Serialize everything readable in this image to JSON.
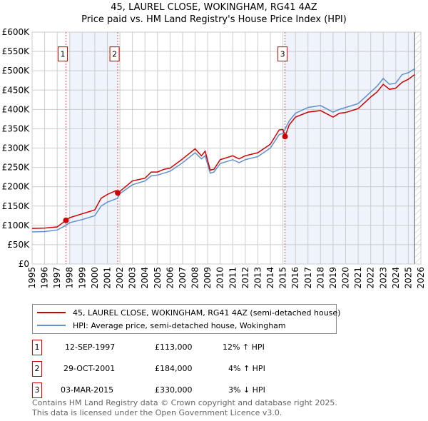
{
  "title": "45, LAUREL CLOSE, WOKINGHAM, RG41 4AZ",
  "subtitle": "Price paid vs. HM Land Registry's House Price Index (HPI)",
  "chart_data": {
    "type": "line",
    "xlim": [
      1995,
      2026
    ],
    "ylim": [
      0,
      600000
    ],
    "yticks": [
      0,
      50000,
      100000,
      150000,
      200000,
      250000,
      300000,
      350000,
      400000,
      450000,
      500000,
      550000,
      600000
    ],
    "ytick_labels": [
      "£0",
      "£50K",
      "£100K",
      "£150K",
      "£200K",
      "£250K",
      "£300K",
      "£350K",
      "£400K",
      "£450K",
      "£500K",
      "£550K",
      "£600K"
    ],
    "xtick_labels": [
      "1995",
      "1996",
      "1997",
      "1998",
      "1999",
      "2000",
      "2001",
      "2002",
      "2003",
      "2004",
      "2005",
      "2006",
      "2007",
      "2008",
      "2009",
      "2010",
      "2011",
      "2012",
      "2013",
      "2014",
      "2015",
      "2016",
      "2017",
      "2018",
      "2019",
      "2020",
      "2021",
      "2022",
      "2023",
      "2024",
      "2025",
      "2026"
    ],
    "grid": true,
    "series": [
      {
        "name": "45, LAUREL CLOSE, WOKINGHAM, RG41 4AZ (semi-detached house)",
        "color": "#cc0000",
        "x": [
          1995,
          1996,
          1997,
          1997.7,
          1998,
          1999,
          2000,
          2000.5,
          2001,
          2001.7,
          2001.83,
          2002,
          2003,
          2004,
          2004.5,
          2005,
          2005.5,
          2006,
          2007,
          2008,
          2008.5,
          2008.8,
          2009.2,
          2009.5,
          2010,
          2011,
          2011.5,
          2012,
          2013,
          2014,
          2014.7,
          2015,
          2015.17,
          2015.5,
          2016,
          2017,
          2018,
          2019,
          2019.5,
          2020,
          2021,
          2022,
          2022.5,
          2023,
          2023.5,
          2024,
          2024.5,
          2025,
          2025.5
        ],
        "y": [
          92000,
          93000,
          96000,
          113000,
          120000,
          130000,
          140000,
          170000,
          180000,
          190000,
          184000,
          188000,
          215000,
          222000,
          238000,
          238000,
          245000,
          248000,
          272000,
          298000,
          280000,
          292000,
          243000,
          245000,
          270000,
          280000,
          272000,
          280000,
          288000,
          310000,
          347000,
          348000,
          330000,
          360000,
          380000,
          393000,
          397000,
          380000,
          390000,
          392000,
          402000,
          432000,
          445000,
          465000,
          452000,
          455000,
          470000,
          478000,
          490000
        ]
      },
      {
        "name": "HPI: Average price, semi-detached house, Wokingham",
        "color": "#6090d0",
        "x": [
          1995,
          1996,
          1997,
          1997.7,
          1998,
          1999,
          2000,
          2000.5,
          2001,
          2001.8,
          2002,
          2003,
          2004,
          2004.5,
          2005,
          2005.5,
          2006,
          2007,
          2008,
          2008.5,
          2008.8,
          2009.2,
          2009.5,
          2010,
          2011,
          2011.5,
          2012,
          2013,
          2014,
          2014.7,
          2015,
          2015.5,
          2016,
          2017,
          2018,
          2019,
          2019.5,
          2020,
          2021,
          2022,
          2022.5,
          2023,
          2023.5,
          2024,
          2024.5,
          2025,
          2025.5
        ],
        "y": [
          83000,
          84000,
          88000,
          100000,
          107000,
          115000,
          125000,
          150000,
          160000,
          170000,
          182000,
          205000,
          215000,
          228000,
          230000,
          235000,
          240000,
          262000,
          288000,
          272000,
          280000,
          235000,
          238000,
          260000,
          270000,
          262000,
          270000,
          278000,
          300000,
          335000,
          338000,
          370000,
          390000,
          405000,
          410000,
          393000,
          400000,
          405000,
          415000,
          445000,
          460000,
          480000,
          465000,
          468000,
          490000,
          495000,
          505000
        ]
      }
    ],
    "sales": [
      {
        "label": "1",
        "x": 1997.7,
        "y": 113000
      },
      {
        "label": "2",
        "x": 2001.83,
        "y": 184000
      },
      {
        "label": "3",
        "x": 2015.17,
        "y": 330000
      }
    ],
    "shaded": [
      [
        1997.95,
        2001.83
      ],
      [
        2015.17,
        2025.5
      ]
    ],
    "hatched_from": 2025.5,
    "legend_position": "below"
  },
  "legend": {
    "red": "45, LAUREL CLOSE, WOKINGHAM, RG41 4AZ (semi-detached house)",
    "blue": "HPI: Average price, semi-detached house, Wokingham"
  },
  "transactions": [
    {
      "num": "1",
      "date": "12-SEP-1997",
      "price": "£113,000",
      "hpi": "12% ↑ HPI"
    },
    {
      "num": "2",
      "date": "29-OCT-2001",
      "price": "£184,000",
      "hpi": "4% ↑ HPI"
    },
    {
      "num": "3",
      "date": "03-MAR-2015",
      "price": "£330,000",
      "hpi": "3% ↓ HPI"
    }
  ],
  "footer": [
    "Contains HM Land Registry data © Crown copyright and database right 2025.",
    "This data is licensed under the Open Government Licence v3.0."
  ]
}
